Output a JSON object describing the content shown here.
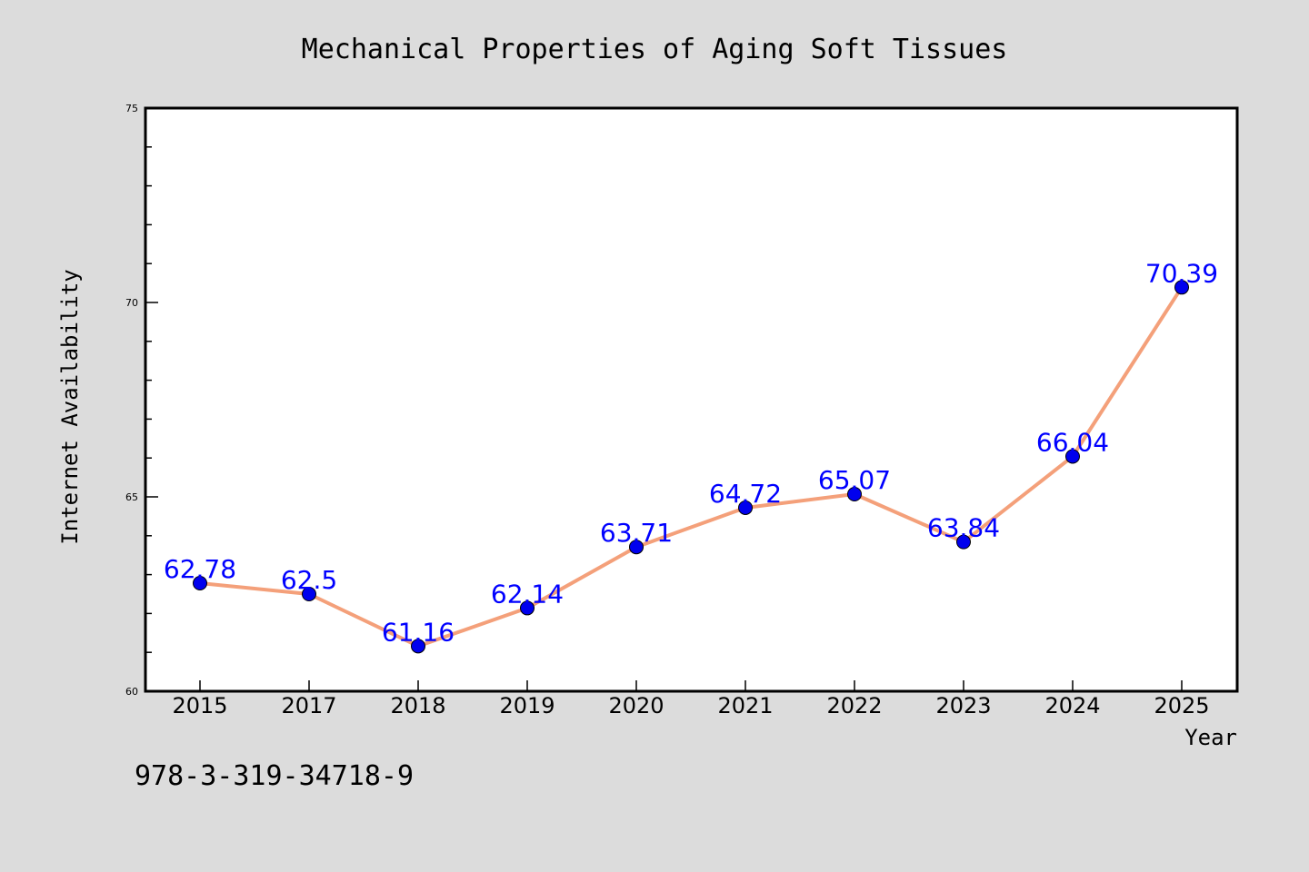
{
  "chart_data": {
    "type": "line",
    "title": "Mechanical Properties of Aging Soft Tissues",
    "xlabel": "Year",
    "ylabel": "Internet Availability",
    "categories": [
      "2015",
      "2017",
      "2018",
      "2019",
      "2020",
      "2021",
      "2022",
      "2023",
      "2024",
      "2025"
    ],
    "values": [
      62.78,
      62.5,
      61.16,
      62.14,
      63.71,
      64.72,
      65.07,
      63.84,
      66.04,
      70.39
    ],
    "data_labels": [
      "62.78",
      "62.5",
      "61.16",
      "62.14",
      "63.71",
      "64.72",
      "65.07",
      "63.84",
      "66.04",
      "70.39"
    ],
    "ylim": [
      60,
      75
    ],
    "yticks": [
      60,
      65,
      70,
      75
    ],
    "ytick_labels": [
      "60",
      "65",
      "70",
      "75"
    ],
    "y_minor_step": 1,
    "grid": false,
    "legend": "none",
    "line_color": "#f4a07a",
    "marker_color": "#0000ee",
    "label_color": "#0000ff"
  },
  "annotation": "978-3-319-34718-9",
  "colors": {
    "figure_background": "#dcdcdc",
    "plot_background": "#ffffff",
    "axes_color": "#000000"
  }
}
